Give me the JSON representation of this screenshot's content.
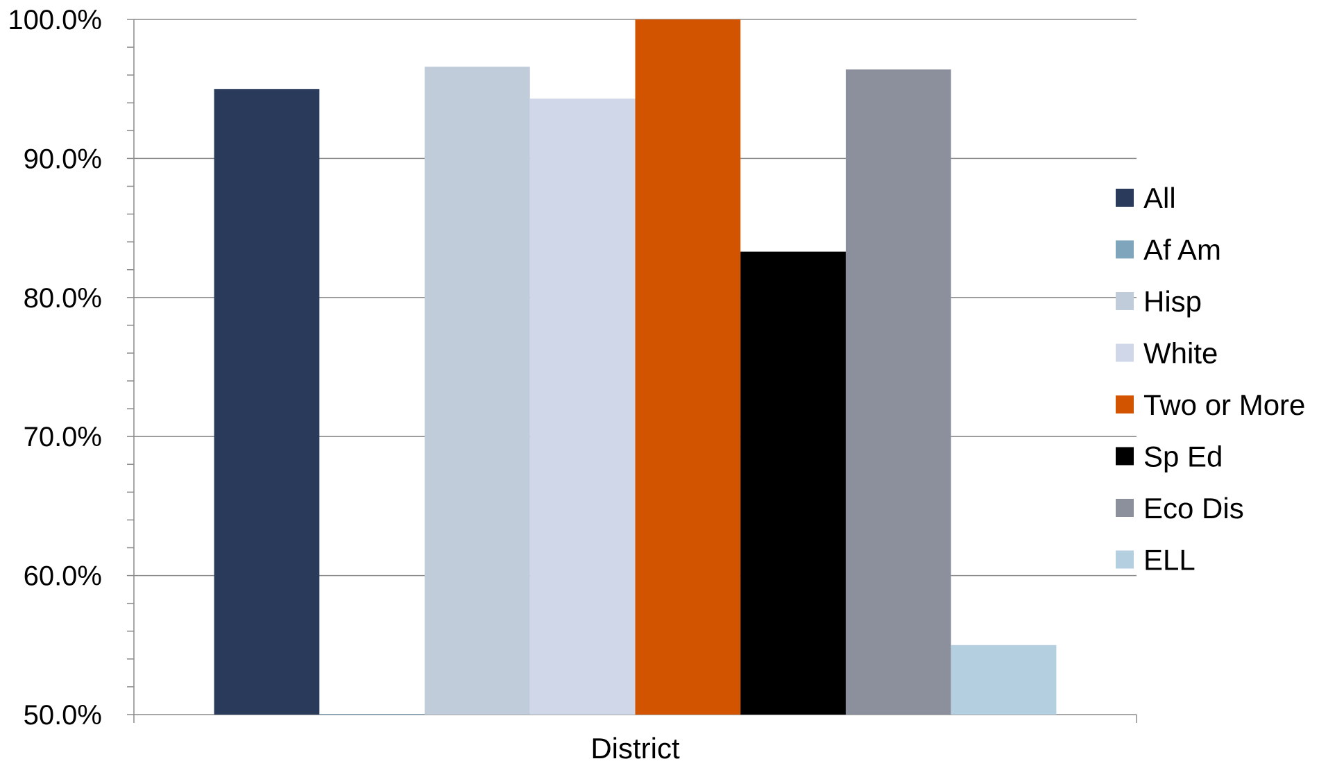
{
  "chart_data": {
    "type": "bar",
    "categories": [
      "District"
    ],
    "series": [
      {
        "name": "All",
        "values": [
          95.0
        ],
        "color": "#2a3a5b"
      },
      {
        "name": "Af Am",
        "values": [
          50.0
        ],
        "color": "#7ea5bb"
      },
      {
        "name": "Hisp",
        "values": [
          96.6
        ],
        "color": "#c0ccd9"
      },
      {
        "name": "White",
        "values": [
          94.3
        ],
        "color": "#cfd7e8"
      },
      {
        "name": "Two or More",
        "values": [
          100.0
        ],
        "color": "#d35400"
      },
      {
        "name": "Sp Ed",
        "values": [
          83.3
        ],
        "color": "#000000"
      },
      {
        "name": "Eco Dis",
        "values": [
          96.4
        ],
        "color": "#8c8f9c"
      },
      {
        "name": "ELL",
        "values": [
          55.0
        ],
        "color": "#b4cfe0"
      }
    ],
    "title": "",
    "xlabel": "",
    "ylabel": "",
    "ylim": [
      50,
      100
    ],
    "yticks": [
      "50.0%",
      "60.0%",
      "70.0%",
      "80.0%",
      "90.0%",
      "100.0%"
    ],
    "grid": true,
    "legend_position": "right"
  }
}
